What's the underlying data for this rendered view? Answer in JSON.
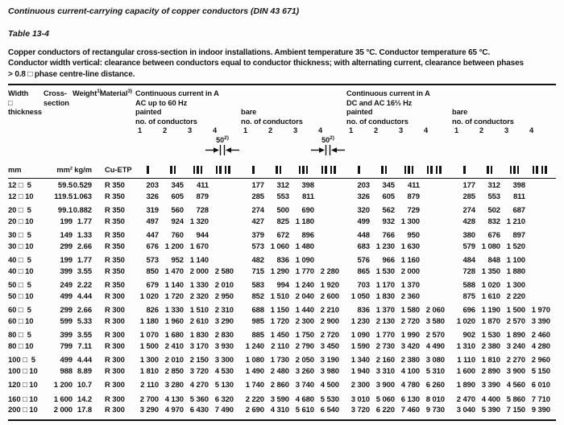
{
  "page": {
    "title": "Continuous current-carrying capacity of copper conductors (DIN 43 671)",
    "table_label": "Table 13-4",
    "description_lines": [
      "Copper conductors of rectangular cross-section in indoor installations. Ambient temperature 35 °C. Conductor temperature 65 °C.",
      "Conductor width vertical: clearance between conductors equal to conductor thickness; with alternating current, clearance between phases",
      "> 0.8 □ phase centre-line distance."
    ]
  },
  "header": {
    "width_line1": "Width",
    "width_line2": "□",
    "width_line3": "thickness",
    "cross_line1": "Cross-",
    "cross_line2": "section",
    "weight_label": "Weight",
    "weight_sup": "1)",
    "material_label": "Material",
    "material_sup": "3)",
    "ac_title": "Continuous current in A",
    "ac_subtitle": "AC up to 60 Hz",
    "dc_title": "Continuous current in A",
    "dc_subtitle": "DC and AC 16⅔ Hz",
    "painted": "painted",
    "bare": "bare",
    "conductors_label": "no. of conductors",
    "nums": [
      "1",
      "2",
      "3",
      "4"
    ]
  },
  "annotation": {
    "value": "50",
    "sup": "2)"
  },
  "units": {
    "width": "mm",
    "cross": "mm²",
    "weight": "kg/m",
    "material": "Cu-ETP"
  },
  "conductor_icons": [
    "one-bar",
    "two-bars",
    "three-bars",
    "two-plus-two-bars"
  ],
  "rows": [
    {
      "width": "12 □  5",
      "cross": "59.5",
      "weight": "0.529",
      "material": "R 350",
      "gap": false,
      "values": [
        "203",
        "345",
        "411",
        "",
        "177",
        "312",
        "398",
        "",
        "203",
        "345",
        "411",
        "",
        "177",
        "312",
        "398",
        ""
      ]
    },
    {
      "width": "12 □ 10",
      "cross": "119.5",
      "weight": "1.063",
      "material": "R 350",
      "gap": false,
      "values": [
        "326",
        "605",
        "879",
        "",
        "285",
        "553",
        "811",
        "",
        "326",
        "605",
        "879",
        "",
        "285",
        "553",
        "811",
        ""
      ]
    },
    {
      "width": "20 □  5",
      "cross": "99.1",
      "weight": "0.882",
      "material": "R 350",
      "gap": true,
      "values": [
        "319",
        "560",
        "728",
        "",
        "274",
        "500",
        "690",
        "",
        "320",
        "562",
        "729",
        "",
        "274",
        "502",
        "687",
        ""
      ]
    },
    {
      "width": "20 □ 10",
      "cross": "199",
      "weight": "1.77",
      "material": "R 350",
      "gap": false,
      "values": [
        "497",
        "924",
        "1 320",
        "",
        "427",
        "825",
        "1 180",
        "",
        "499",
        "932",
        "1 300",
        "",
        "428",
        "832",
        "1 210",
        ""
      ]
    },
    {
      "width": "30 □  5",
      "cross": "149",
      "weight": "1.33",
      "material": "R 350",
      "gap": true,
      "values": [
        "447",
        "760",
        "944",
        "",
        "379",
        "672",
        "896",
        "",
        "448",
        "766",
        "950",
        "",
        "380",
        "676",
        "897",
        ""
      ]
    },
    {
      "width": "30 □ 10",
      "cross": "299",
      "weight": "2.66",
      "material": "R 350",
      "gap": false,
      "values": [
        "676",
        "1 200",
        "1 670",
        "",
        "573",
        "1 060",
        "1 480",
        "",
        "683",
        "1 230",
        "1 630",
        "",
        "579",
        "1 080",
        "1 520",
        ""
      ]
    },
    {
      "width": "40 □  5",
      "cross": "199",
      "weight": "1.77",
      "material": "R 350",
      "gap": true,
      "values": [
        "573",
        "952",
        "1 140",
        "",
        "482",
        "836",
        "1 090",
        "",
        "576",
        "966",
        "1 160",
        "",
        "484",
        "848",
        "1 100",
        ""
      ]
    },
    {
      "width": "40 □ 10",
      "cross": "399",
      "weight": "3.55",
      "material": "R 350",
      "gap": false,
      "values": [
        "850",
        "1 470",
        "2 000",
        "2 580",
        "715",
        "1 290",
        "1 770",
        "2 280",
        "865",
        "1 530",
        "2 000",
        "",
        "728",
        "1 350",
        "1 880",
        ""
      ]
    },
    {
      "width": "50 □  5",
      "cross": "249",
      "weight": "2.22",
      "material": "R 350",
      "gap": true,
      "values": [
        "679",
        "1 140",
        "1 330",
        "2 010",
        "583",
        "994",
        "1 240",
        "1 920",
        "703",
        "1 170",
        "1 370",
        "",
        "588",
        "1 020",
        "1 300",
        ""
      ]
    },
    {
      "width": "50 □ 10",
      "cross": "499",
      "weight": "4.44",
      "material": "R 300",
      "gap": false,
      "values": [
        "1 020",
        "1 720",
        "2 320",
        "2 950",
        "852",
        "1 510",
        "2 040",
        "2 600",
        "1 050",
        "1 830",
        "2 360",
        "",
        "875",
        "1 610",
        "2 220",
        ""
      ]
    },
    {
      "width": "60 □  5",
      "cross": "299",
      "weight": "2.66",
      "material": "R 300",
      "gap": true,
      "values": [
        "826",
        "1 330",
        "1 510",
        "2 310",
        "688",
        "1 150",
        "1 440",
        "2 210",
        "836",
        "1 370",
        "1 580",
        "2 060",
        "696",
        "1 190",
        "1 500",
        "1 970"
      ]
    },
    {
      "width": "60 □ 10",
      "cross": "599",
      "weight": "5.33",
      "material": "R 300",
      "gap": false,
      "values": [
        "1 180",
        "1 960",
        "2 610",
        "3 290",
        "985",
        "1 720",
        "2 300",
        "2 900",
        "1 230",
        "2 130",
        "2 720",
        "3 580",
        "1 020",
        "1 870",
        "2 570",
        "3 390"
      ]
    },
    {
      "width": "80 □  5",
      "cross": "399",
      "weight": "3.55",
      "material": "R 300",
      "gap": true,
      "values": [
        "1 070",
        "1 680",
        "1 830",
        "2 830",
        "885",
        "1 450",
        "1 750",
        "2 720",
        "1 090",
        "1 770",
        "1 990",
        "2 570",
        "902",
        "1 530",
        "1 890",
        "2 460"
      ]
    },
    {
      "width": "80 □ 10",
      "cross": "799",
      "weight": "7.11",
      "material": "R 300",
      "gap": false,
      "values": [
        "1 500",
        "2 410",
        "3 170",
        "3 930",
        "1 240",
        "2 110",
        "2 790",
        "3 450",
        "1 590",
        "2 730",
        "3 420",
        "4 490",
        "1 310",
        "2 380",
        "3 240",
        "4 280"
      ]
    },
    {
      "width": "100 □  5",
      "cross": "499",
      "weight": "4.44",
      "material": "R 300",
      "gap": true,
      "values": [
        "1 300",
        "2 010",
        "2 150",
        "3 300",
        "1 080",
        "1 730",
        "2 050",
        "3 190",
        "1 340",
        "2 160",
        "2 380",
        "3 080",
        "1 110",
        "1 810",
        "2 270",
        "2 960"
      ]
    },
    {
      "width": "100 □ 10",
      "cross": "988",
      "weight": "8.89",
      "material": "R 300",
      "gap": false,
      "values": [
        "1 810",
        "2 850",
        "3 720",
        "4 530",
        "1 490",
        "2 480",
        "3 260",
        "3 980",
        "1 940",
        "3 310",
        "4 100",
        "5 310",
        "1 600",
        "2 890",
        "3 900",
        "5 150"
      ]
    },
    {
      "width": "120 □ 10",
      "cross": "1 200",
      "weight": "10.7",
      "material": "R 300",
      "gap": true,
      "values": [
        "2 110",
        "3 280",
        "4 270",
        "5 130",
        "1 740",
        "2 860",
        "3 740",
        "4 500",
        "2 300",
        "3 900",
        "4 780",
        "6 260",
        "1 890",
        "3 390",
        "4 560",
        "6 010"
      ]
    },
    {
      "width": "160 □ 10",
      "cross": "1 600",
      "weight": "14.2",
      "material": "R 300",
      "gap": true,
      "values": [
        "2 700",
        "4 130",
        "5 360",
        "6 320",
        "2 220",
        "3 590",
        "4 680",
        "5 530",
        "3 010",
        "5 060",
        "6 130",
        "8 010",
        "2 470",
        "4 400",
        "5 860",
        "7 710"
      ]
    },
    {
      "width": "200 □ 10",
      "cross": "2 000",
      "weight": "17.8",
      "material": "R 300",
      "gap": false,
      "values": [
        "3 290",
        "4 970",
        "6 430",
        "7 490",
        "2 690",
        "4 310",
        "5 610",
        "6 540",
        "3 720",
        "6 220",
        "7 460",
        "9 730",
        "3 040",
        "5 390",
        "7 150",
        "9 390"
      ]
    }
  ]
}
